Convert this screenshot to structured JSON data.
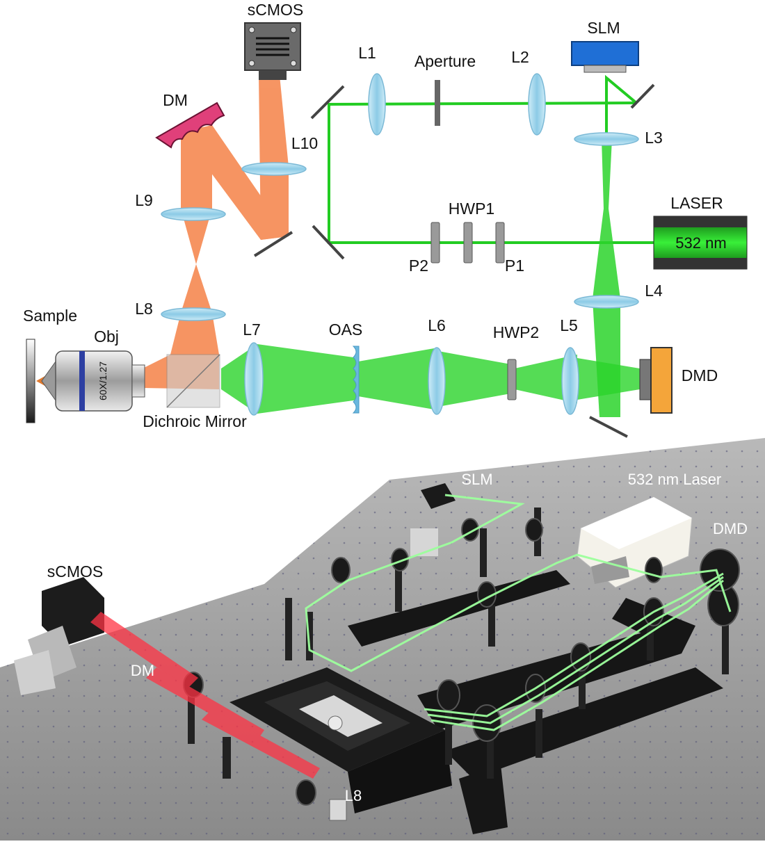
{
  "schematic": {
    "labels": {
      "scmos": "sCMOS",
      "slm": "SLM",
      "dm": "DM",
      "l1": "L1",
      "aperture": "Aperture",
      "l2": "L2",
      "l3": "L3",
      "l10": "L10",
      "l9": "L9",
      "hwp1": "HWP1",
      "laser": "LASER",
      "laser_wavelength": "532 nm",
      "p2": "P2",
      "p1": "P1",
      "l8": "L8",
      "l4": "L4",
      "sample": "Sample",
      "obj": "Obj",
      "objective_marking": "60X/1.27",
      "l7": "L7",
      "oas": "OAS",
      "l6": "L6",
      "hwp2": "HWP2",
      "l5": "L5",
      "dmd": "DMD",
      "dichroic_mirror": "Dichroic Mirror"
    },
    "colors": {
      "green_beam": "#22cc22",
      "orange_beam": "#f47a3c",
      "lens": "#a9d9ef",
      "slm_body": "#1f6fd6",
      "dm_body": "#e0407a",
      "dmd_body": "#f4a53a",
      "laser_glow": "#33ee33"
    }
  },
  "photo": {
    "labels": {
      "slm": "SLM",
      "laser": "532 nm Laser",
      "dmd": "DMD",
      "scmos": "sCMOS",
      "dm": "DM",
      "l8": "L8"
    },
    "colors": {
      "green_beam": "#9dff9d",
      "red_beam": "#ff3344",
      "table": "#9a9a9a"
    }
  }
}
